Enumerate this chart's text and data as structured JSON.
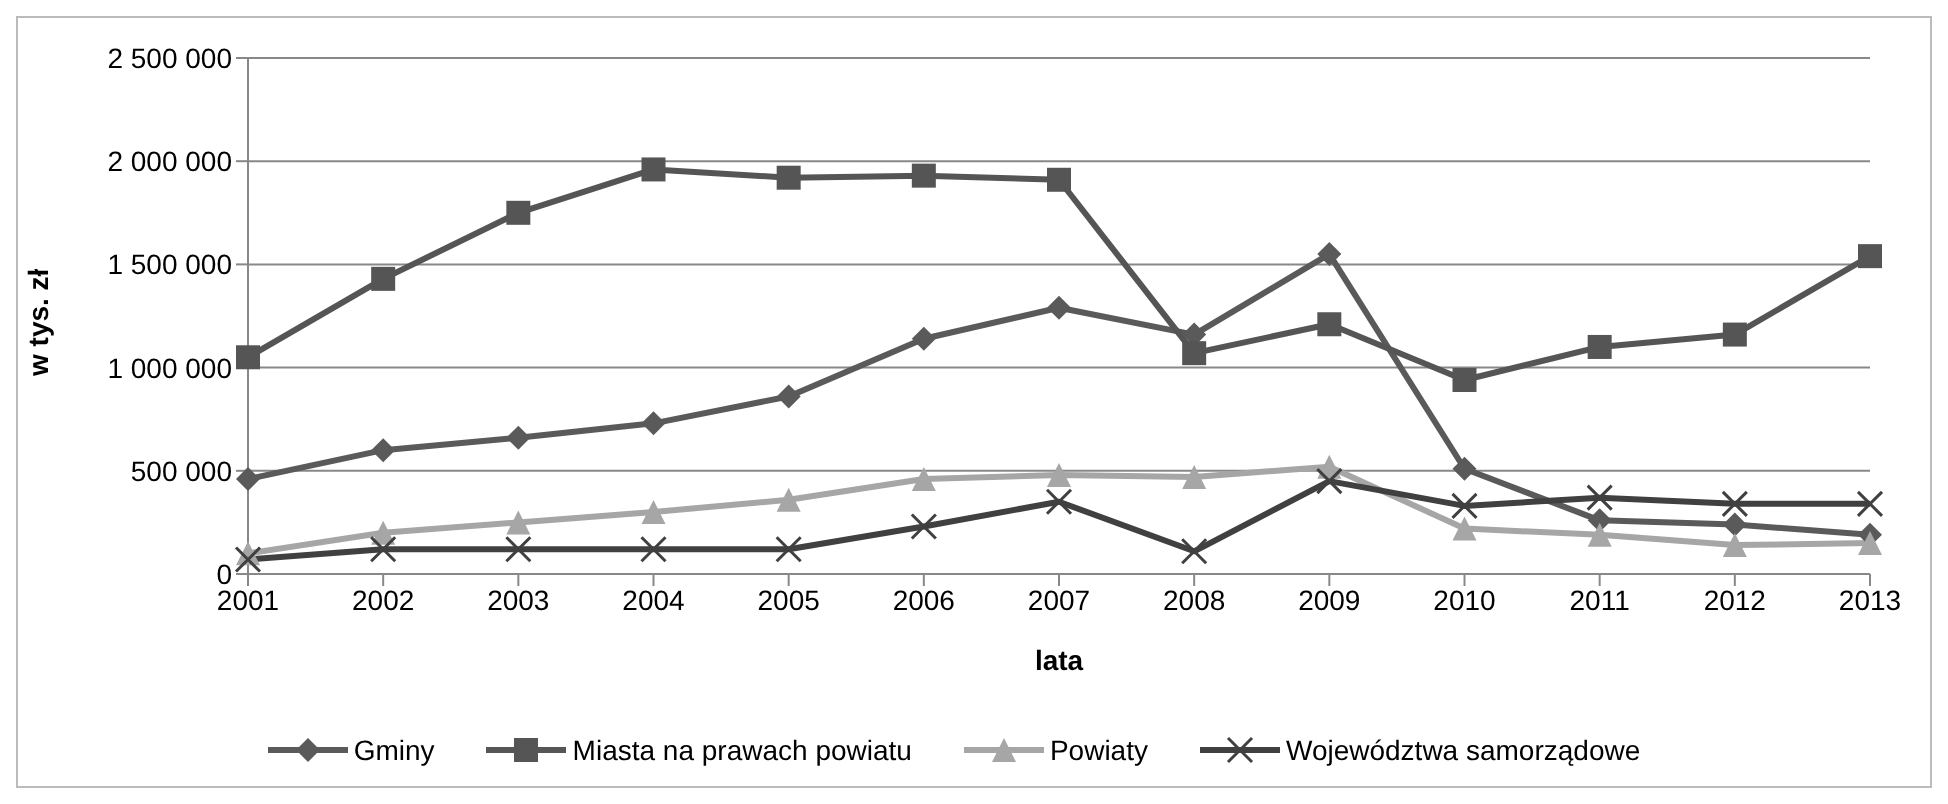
{
  "chart_data": {
    "type": "line",
    "xlabel": "lata",
    "ylabel": "w tys. zł",
    "categories": [
      "2001",
      "2002",
      "2003",
      "2004",
      "2005",
      "2006",
      "2007",
      "2008",
      "2009",
      "2010",
      "2011",
      "2012",
      "2013"
    ],
    "series": [
      {
        "name": "Gminy",
        "color": "#5a5a5a",
        "marker": "diamond",
        "values": [
          460000,
          600000,
          660000,
          730000,
          860000,
          1140000,
          1290000,
          1160000,
          1550000,
          510000,
          260000,
          240000,
          190000
        ]
      },
      {
        "name": "Miasta na prawach powiatu",
        "color": "#555555",
        "marker": "square",
        "values": [
          1050000,
          1430000,
          1750000,
          1960000,
          1920000,
          1930000,
          1910000,
          1070000,
          1210000,
          940000,
          1100000,
          1160000,
          1540000
        ]
      },
      {
        "name": "Powiaty",
        "color": "#a6a6a6",
        "marker": "triangle",
        "values": [
          100000,
          200000,
          250000,
          300000,
          360000,
          460000,
          480000,
          470000,
          520000,
          220000,
          190000,
          140000,
          150000
        ]
      },
      {
        "name": "Województwa samorządowe",
        "color": "#404040",
        "marker": "cross",
        "values": [
          70000,
          120000,
          120000,
          120000,
          120000,
          230000,
          350000,
          110000,
          450000,
          330000,
          370000,
          340000,
          340000
        ]
      }
    ],
    "ylim": [
      0,
      2500000
    ],
    "yticks": [
      0,
      {
        "value": 500000,
        "label": "500 000"
      },
      {
        "value": 1000000,
        "label": "1 000 000"
      },
      {
        "value": 1500000,
        "label": "1 500 000"
      },
      {
        "value": 2000000,
        "label": "2 000 000"
      },
      {
        "value": 2500000,
        "label": "2 500 000"
      }
    ],
    "grid": "y",
    "legend": "bottom",
    "line_style": "solid"
  }
}
